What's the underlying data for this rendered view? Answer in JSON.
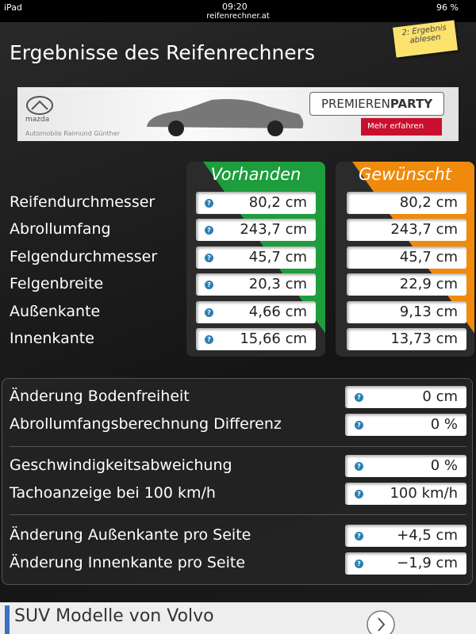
{
  "status_bar": {
    "device": "iPad",
    "time": "09:20",
    "battery": "96 %",
    "url": "reifenrechner.at"
  },
  "header": {
    "title": "Ergebnisse des Reifenrechners",
    "note": "2: Ergebnis ablesen"
  },
  "top_ad": {
    "brand": "mazda",
    "headline_light": "PREMIEREN",
    "headline_bold": "PARTY",
    "button": "Mehr erfahren",
    "dealer": "Automobile Raimund Günther"
  },
  "help_icon": "?",
  "comparison": {
    "columns": [
      "Vorhanden",
      "Gewünscht"
    ],
    "rows": [
      {
        "label": "Reifendurchmesser",
        "values": [
          "80,2 cm",
          "80,2 cm"
        ]
      },
      {
        "label": "Abrollumfang",
        "values": [
          "243,7 cm",
          "243,7 cm"
        ]
      },
      {
        "label": "Felgendurchmesser",
        "values": [
          "45,7 cm",
          "45,7 cm"
        ]
      },
      {
        "label": "Felgenbreite",
        "values": [
          "20,3 cm",
          "22,9 cm"
        ]
      },
      {
        "label": "Außenkante",
        "values": [
          "4,66 cm",
          "9,13 cm"
        ]
      },
      {
        "label": "Innenkante",
        "values": [
          "15,66 cm",
          "13,73 cm"
        ]
      }
    ]
  },
  "summary": {
    "groups": [
      [
        {
          "label": "Änderung Bodenfreiheit",
          "value": "0 cm"
        },
        {
          "label": "Abrollumfangsberechnung Differenz",
          "value": "0 %"
        }
      ],
      [
        {
          "label": "Geschwindigkeitsabweichung",
          "value": "0 %"
        },
        {
          "label": "Tachoanzeige bei 100 km/h",
          "value": "100 km/h"
        }
      ],
      [
        {
          "label": "Änderung Außenkante pro Seite",
          "value": "+4,5 cm"
        },
        {
          "label": "Änderung Innenkante pro Seite",
          "value": "−1,9 cm"
        }
      ]
    ]
  },
  "bottom_ad": {
    "title": "SUV Modelle von Volvo"
  }
}
